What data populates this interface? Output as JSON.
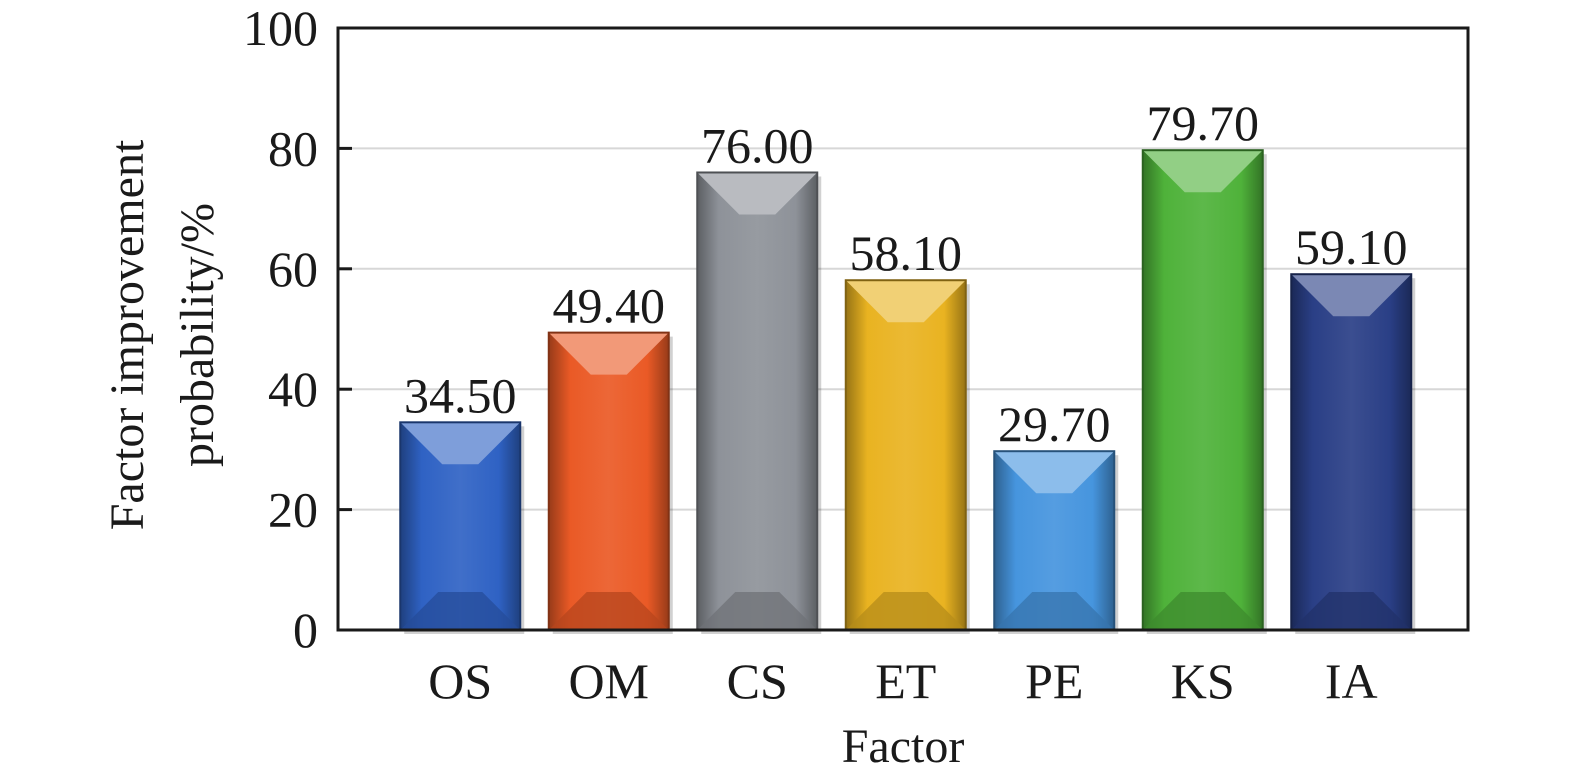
{
  "chart_data": {
    "type": "bar",
    "title": "",
    "xlabel": "Factor",
    "ylabel_lines": [
      "Factor improvement",
      "probability/%"
    ],
    "categories": [
      "OS",
      "OM",
      "CS",
      "ET",
      "PE",
      "KS",
      "IA"
    ],
    "values": [
      34.5,
      49.4,
      76.0,
      58.1,
      29.7,
      79.7,
      59.1
    ],
    "value_labels": [
      "34.50",
      "49.40",
      "76.00",
      "58.10",
      "29.70",
      "79.70",
      "59.10"
    ],
    "colors": [
      "#2f62c4",
      "#ea5a26",
      "#8e9299",
      "#e9b321",
      "#4695de",
      "#4fb23a",
      "#2a3f86"
    ],
    "ylim": [
      0,
      100
    ],
    "yticks": [
      "0",
      "20",
      "40",
      "60",
      "80",
      "100"
    ],
    "grid": true,
    "legend": "none"
  }
}
